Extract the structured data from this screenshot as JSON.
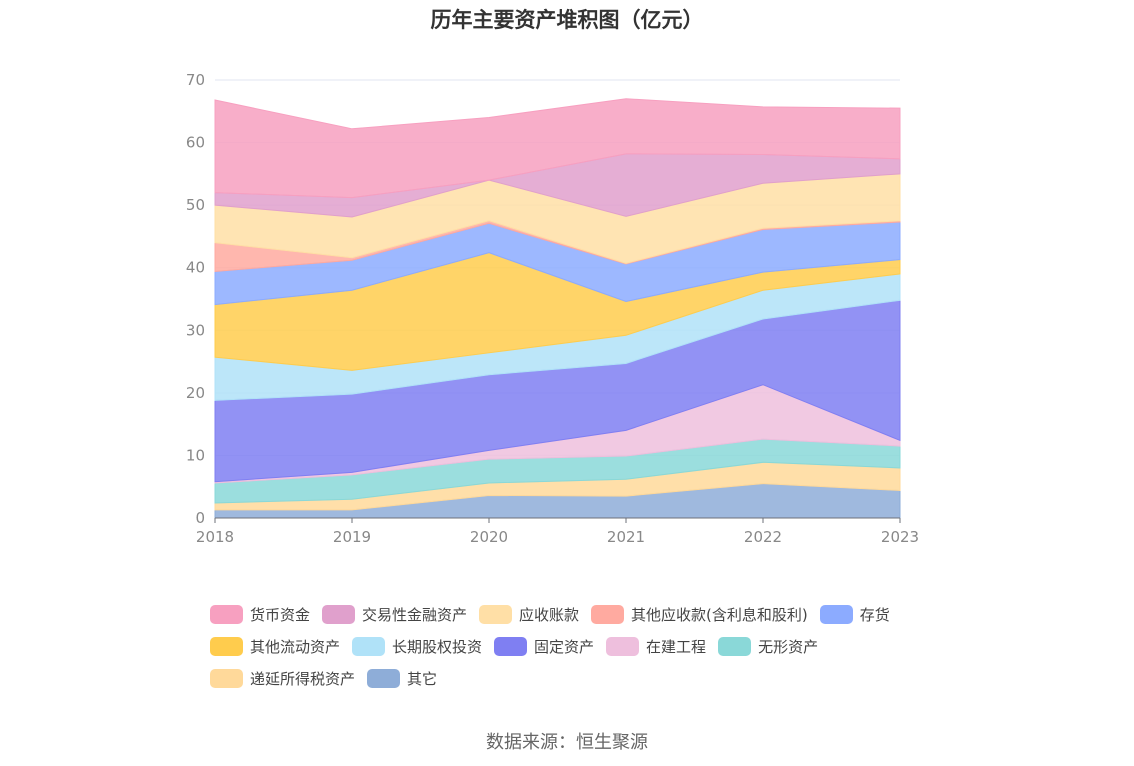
{
  "title": "历年主要资产堆积图（亿元）",
  "source": "数据来源：恒生聚源",
  "chart_data": {
    "type": "area",
    "stacked": true,
    "title": "历年主要资产堆积图（亿元）",
    "categories": [
      "2018",
      "2019",
      "2020",
      "2021",
      "2022",
      "2023"
    ],
    "ylim": [
      0,
      70
    ],
    "yticks": [
      "0",
      "10",
      "20",
      "30",
      "40",
      "50",
      "60",
      "70"
    ],
    "grid": true,
    "legend_position": "bottom",
    "series": [
      {
        "name": "其它",
        "color": "#8eadd8",
        "values": [
          1.3,
          1.3,
          3.6,
          3.5,
          5.5,
          4.4
        ]
      },
      {
        "name": "递延所得税资产",
        "color": "#ffd99a",
        "values": [
          1.1,
          1.7,
          2.0,
          2.7,
          3.4,
          3.6
        ]
      },
      {
        "name": "无形资产",
        "color": "#8ad8d8",
        "values": [
          3.2,
          3.9,
          3.8,
          3.7,
          3.7,
          3.5
        ]
      },
      {
        "name": "在建工程",
        "color": "#eebfdd",
        "values": [
          0.2,
          0.4,
          1.4,
          4.1,
          8.7,
          0.9
        ]
      },
      {
        "name": "固定资产",
        "color": "#7f7ff2",
        "values": [
          13.0,
          12.5,
          12.1,
          10.7,
          10.5,
          22.4
        ]
      },
      {
        "name": "长期股权投资",
        "color": "#b0e2f8",
        "values": [
          6.9,
          3.8,
          3.5,
          4.5,
          4.6,
          4.2
        ]
      },
      {
        "name": "其他流动资产",
        "color": "#ffcc4d",
        "values": [
          8.4,
          12.8,
          16.0,
          5.4,
          2.9,
          2.3
        ]
      },
      {
        "name": "存货",
        "color": "#8cabff",
        "values": [
          5.3,
          4.8,
          4.7,
          6.0,
          6.8,
          6.0
        ]
      },
      {
        "name": "其他应收款(含利息和股利)",
        "color": "#ffaaa0",
        "values": [
          4.6,
          0.4,
          0.4,
          0.1,
          0.2,
          0.2
        ]
      },
      {
        "name": "应收账款",
        "color": "#ffdfa6",
        "values": [
          6.0,
          6.5,
          6.5,
          7.5,
          7.2,
          7.5
        ]
      },
      {
        "name": "交易性金融资产",
        "color": "#e0a0cc",
        "values": [
          2.0,
          3.1,
          0.0,
          10.0,
          4.6,
          2.4
        ]
      },
      {
        "name": "货币资金",
        "color": "#f7a0c0",
        "values": [
          14.8,
          11.0,
          10.0,
          8.8,
          7.6,
          8.1
        ]
      }
    ],
    "legend_order": [
      "货币资金",
      "交易性金融资产",
      "应收账款",
      "其他应收款(含利息和股利)",
      "存货",
      "其他流动资产",
      "长期股权投资",
      "固定资产",
      "在建工程",
      "无形资产",
      "递延所得税资产",
      "其它"
    ]
  }
}
